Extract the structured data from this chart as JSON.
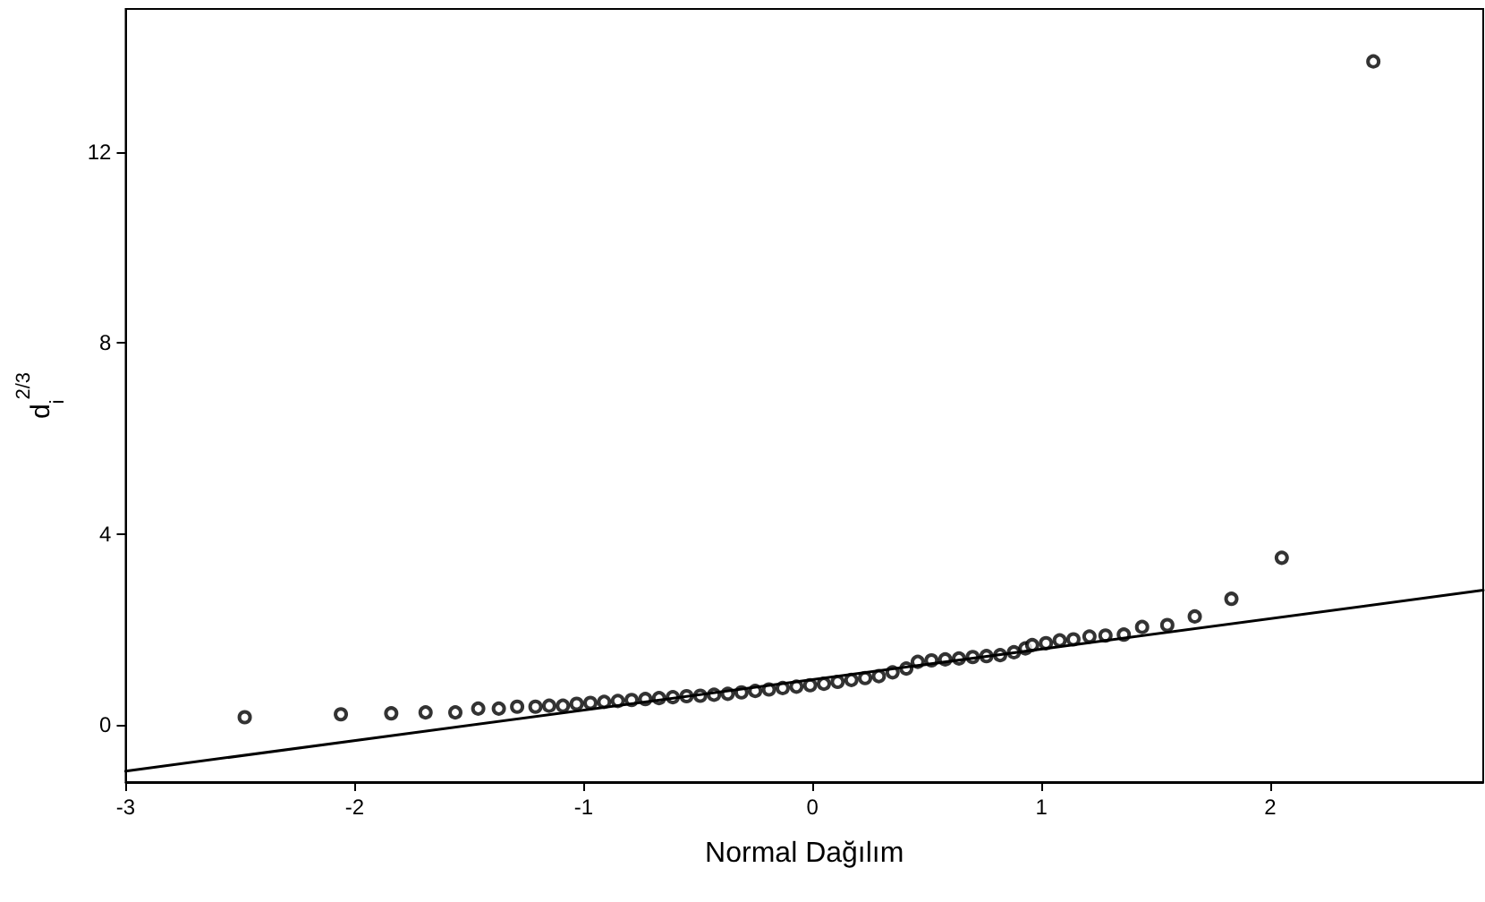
{
  "chart_data": {
    "type": "scatter",
    "xlabel": "Normal Dağılım",
    "ylabel": "d$_{i}$$^{2/3}$",
    "xlim": [
      -3,
      2.93
    ],
    "ylim": [
      -1.2,
      15
    ],
    "xticks": [
      -3,
      -2,
      -1,
      0,
      1,
      2
    ],
    "yticks": [
      0,
      4,
      8,
      12
    ],
    "grid": false,
    "marker": "circle",
    "series": [
      {
        "color": "#000000",
        "x": [
          -2.48,
          -2.06,
          -1.84,
          -1.69,
          -1.56,
          -1.46,
          -1.37,
          -1.29,
          -1.21,
          -1.15,
          -1.09,
          -1.03,
          -0.97,
          -0.91,
          -0.85,
          -0.79,
          -0.73,
          -0.67,
          -0.61,
          -0.55,
          -0.49,
          -0.43,
          -0.37,
          -0.31,
          -0.25,
          -0.19,
          -0.13,
          -0.07,
          -0.01,
          0.05,
          0.11,
          0.17,
          0.23,
          0.29,
          0.35,
          0.41,
          0.46,
          0.52,
          0.58,
          0.64,
          0.7,
          0.76,
          0.82,
          0.88,
          0.93,
          0.96,
          1.02,
          1.08,
          1.14,
          1.21,
          1.28,
          1.36,
          1.44,
          1.55,
          1.67,
          1.83,
          2.05,
          2.45
        ],
        "values": [
          0.16,
          0.22,
          0.24,
          0.26,
          0.26,
          0.34,
          0.34,
          0.38,
          0.38,
          0.4,
          0.4,
          0.44,
          0.46,
          0.48,
          0.5,
          0.52,
          0.54,
          0.56,
          0.58,
          0.6,
          0.61,
          0.63,
          0.65,
          0.68,
          0.71,
          0.74,
          0.77,
          0.8,
          0.83,
          0.86,
          0.9,
          0.94,
          0.98,
          1.02,
          1.1,
          1.18,
          1.32,
          1.35,
          1.37,
          1.39,
          1.42,
          1.44,
          1.46,
          1.52,
          1.6,
          1.67,
          1.71,
          1.77,
          1.79,
          1.85,
          1.87,
          1.89,
          2.05,
          2.09,
          2.27,
          2.64,
          3.5,
          13.9
        ]
      },
      {
        "type": "line",
        "color": "#000000",
        "marker": "none",
        "line_style": "solid",
        "x": [
          -3,
          2.93
        ],
        "values": [
          -0.97,
          2.82
        ]
      }
    ]
  }
}
